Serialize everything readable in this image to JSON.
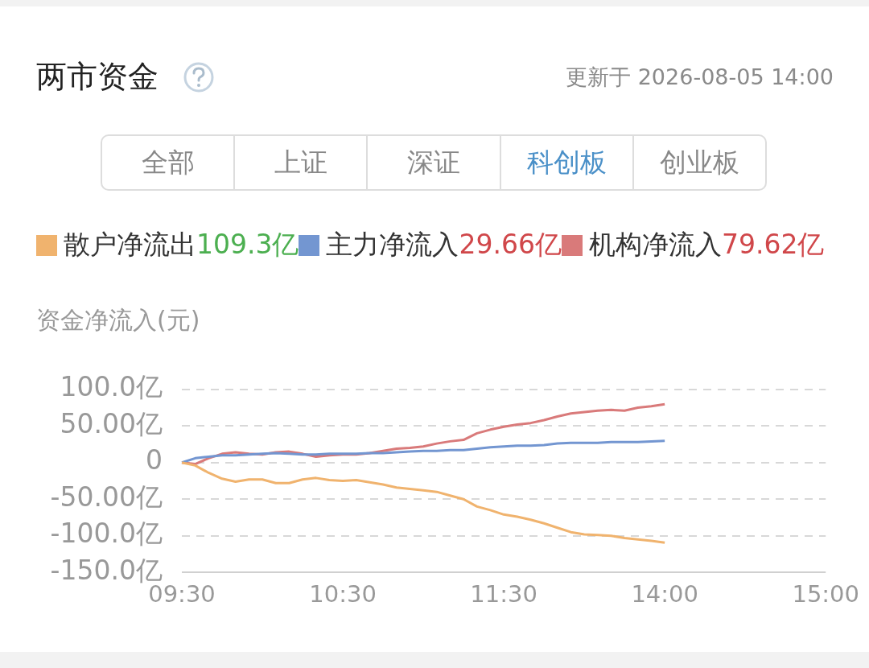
{
  "chart_data": {
    "type": "line",
    "title": "两市资金",
    "ylabel": "资金净流入(元)",
    "categories": [
      "09:30",
      null,
      null,
      null,
      null,
      null,
      null,
      null,
      null,
      null,
      null,
      null,
      "10:30",
      null,
      null,
      null,
      null,
      null,
      null,
      null,
      null,
      null,
      null,
      null,
      "11:30",
      null,
      null,
      null,
      null,
      null,
      null,
      null,
      null,
      null,
      null,
      null,
      "14:00",
      null,
      null,
      null,
      null,
      null,
      null,
      null,
      null,
      null,
      null,
      null,
      "15:00"
    ],
    "series": [
      {
        "name": "散户净流出",
        "color": "#f0b36e",
        "values": [
          0,
          -4,
          -14,
          -22,
          -26,
          -23,
          -23,
          -28,
          -28,
          -23,
          -21,
          -24,
          -25,
          -24,
          -27,
          -30,
          -34,
          -36,
          -38,
          -40,
          -45,
          -50,
          -60,
          -65,
          -71,
          -74,
          -78,
          -83,
          -89,
          -95,
          -98,
          -99,
          -100,
          -103,
          -105,
          -107,
          -109.3,
          null,
          null,
          null,
          null,
          null,
          null,
          null,
          null,
          null,
          null,
          null,
          null
        ]
      },
      {
        "name": "主力净流入",
        "color": "#7396d1",
        "values": [
          0,
          6,
          8,
          10,
          10,
          11,
          12,
          13,
          12,
          11,
          11,
          12,
          12,
          12,
          13,
          13,
          14,
          15,
          16,
          16,
          17,
          17,
          19,
          21,
          22,
          23,
          23,
          24,
          26,
          27,
          27,
          27,
          28,
          28,
          28,
          29,
          29.66,
          null,
          null,
          null,
          null,
          null,
          null,
          null,
          null,
          null,
          null,
          null,
          null
        ]
      },
      {
        "name": "机构净流入",
        "color": "#d97a7a",
        "values": [
          0,
          -2,
          6,
          12,
          14,
          12,
          11,
          14,
          15,
          12,
          8,
          10,
          11,
          11,
          13,
          16,
          19,
          20,
          22,
          26,
          29,
          31,
          40,
          45,
          49,
          52,
          54,
          58,
          63,
          67,
          69,
          71,
          72,
          71,
          75,
          77,
          79.62,
          null,
          null,
          null,
          null,
          null,
          null,
          null,
          null,
          null,
          null,
          null,
          null
        ]
      }
    ],
    "ylim": [
      -150,
      100
    ],
    "yticks": [
      {
        "value": -150,
        "label": "-150.0亿"
      },
      {
        "value": -100,
        "label": "-100.0亿"
      },
      {
        "value": -50,
        "label": "-50.00亿"
      },
      0,
      {
        "value": 50,
        "label": "50.00亿"
      },
      {
        "value": 100,
        "label": "100.0亿"
      }
    ],
    "grid": "y",
    "legend": "top",
    "marker": "none",
    "line_style": "solid",
    "annotations": [
      "109.3亿",
      "29.66亿",
      "79.62亿",
      "更新于 2026-08-05 14:00",
      "全部",
      "上证",
      "深证",
      "科创板",
      "创业板"
    ]
  }
}
